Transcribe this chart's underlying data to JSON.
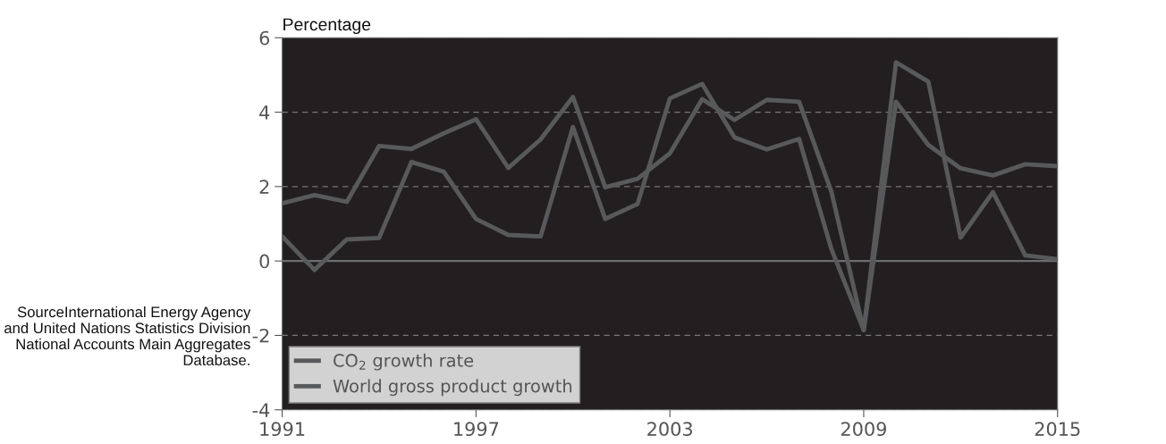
{
  "chart_data": {
    "type": "line",
    "ylabel": "Percentage",
    "x": [
      1991,
      1992,
      1993,
      1994,
      1995,
      1996,
      1997,
      1998,
      1999,
      2000,
      2001,
      2002,
      2003,
      2004,
      2005,
      2006,
      2007,
      2008,
      2009,
      2010,
      2011,
      2012,
      2013,
      2014,
      2015
    ],
    "series": [
      {
        "name": "CO$_{2}$ growth rate",
        "color": "#58595b",
        "values": [
          0.66,
          -0.24,
          0.58,
          0.62,
          2.66,
          2.4,
          1.13,
          0.7,
          0.66,
          3.6,
          1.13,
          1.53,
          4.37,
          4.76,
          3.32,
          3.0,
          3.28,
          0.32,
          -1.86,
          5.34,
          4.82,
          0.63,
          1.85,
          0.15,
          0.05
        ]
      },
      {
        "name": "World gross product growth",
        "color": "#58595b",
        "values": [
          1.55,
          1.77,
          1.59,
          3.09,
          3.01,
          3.43,
          3.81,
          2.5,
          3.27,
          4.41,
          1.98,
          2.21,
          2.89,
          4.35,
          3.79,
          4.33,
          4.28,
          1.86,
          -1.86,
          4.28,
          3.12,
          2.49,
          2.3,
          2.6,
          2.55
        ]
      }
    ],
    "xlim": [
      1991,
      2015
    ],
    "xticks": [
      1991,
      1997,
      2003,
      2009,
      2015
    ],
    "ylim": [
      -4,
      6
    ],
    "yticks": [
      -4,
      -2,
      0,
      2,
      4,
      6
    ],
    "grid": "y",
    "legend": "bottom left",
    "marker": "none",
    "line_style": "solid",
    "ref_lines": [
      {
        "axis": "y",
        "value": 0,
        "color": "#6d6e71"
      }
    ],
    "annotations": [
      "SourceInternational Energy Agency and United Nations Statistics Division National Accounts Main Aggregates Database."
    ]
  }
}
